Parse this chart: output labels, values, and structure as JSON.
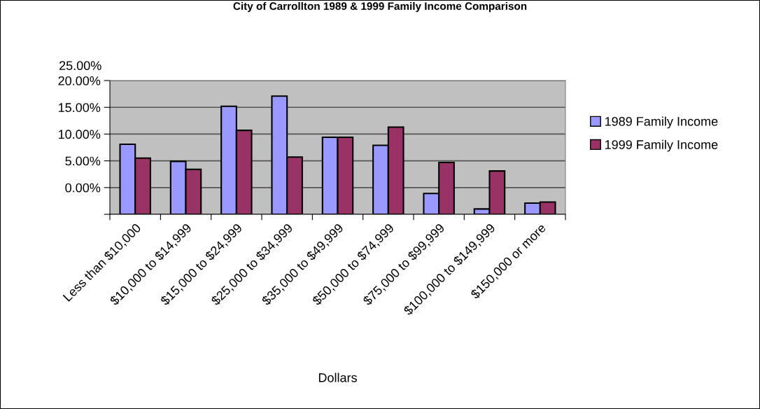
{
  "chart_data": {
    "type": "bar",
    "title": "City of Carrollton 1989 & 1999 Family Income Comparison",
    "xlabel": "Dollars",
    "categories": [
      "Less than $10,000",
      "$10,000 to $14,999",
      "$15,000 to $24,999",
      "$25,000 to $34,999",
      "$35,000 to $49,999",
      "$50,000 to $74,999",
      "$75,000 to $99,999",
      "$100,000 to $149,999",
      "$150,000 or more"
    ],
    "series": [
      {
        "name": "1989 Family Income",
        "color": "#9999ff",
        "base": [
          -5,
          -5,
          -5,
          -5,
          -5,
          -5,
          -5,
          -5,
          -5
        ],
        "values": [
          13.1,
          9.9,
          20.2,
          22.1,
          14.4,
          12.9,
          3.9,
          1.0,
          2.1
        ]
      },
      {
        "name": "1999 Family Income",
        "color": "#993366",
        "base": [
          -5,
          -5,
          -5,
          -5,
          -5,
          -5,
          -5,
          -5,
          -5
        ],
        "values": [
          10.5,
          8.4,
          15.7,
          10.7,
          14.4,
          16.3,
          9.7,
          8.1,
          2.3
        ]
      }
    ],
    "ylim": [
      -5,
      20
    ],
    "yticks": [
      {
        "value": -5,
        "label": null
      },
      {
        "value": 0,
        "label": "0.00%"
      },
      {
        "value": 5,
        "label": "5.00%"
      },
      {
        "value": 10,
        "label": "10.00%"
      },
      {
        "value": 15,
        "label": "15.00%"
      },
      {
        "value": 20,
        "label": "20.00%"
      }
    ],
    "annotations": [
      "25.00%"
    ],
    "grid": "y",
    "legend": "right"
  }
}
